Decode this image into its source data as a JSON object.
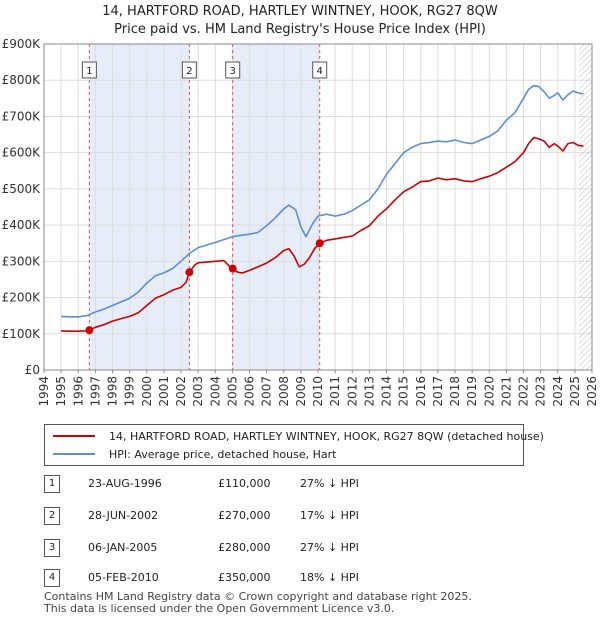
{
  "title_line1": "14, HARTFORD ROAD, HARTLEY WINTNEY, HOOK, RG27 8QW",
  "title_line2": "Price paid vs. HM Land Registry's House Price Index (HPI)",
  "chart_data": {
    "type": "line",
    "xlim": [
      1995.0,
      2025.6
    ],
    "ylim": [
      0,
      900000
    ],
    "y_ticks": [
      0,
      100000,
      200000,
      300000,
      400000,
      500000,
      600000,
      700000,
      800000,
      900000
    ],
    "y_tick_labels": [
      "£0",
      "£100K",
      "£200K",
      "£300K",
      "£400K",
      "£500K",
      "£600K",
      "£700K",
      "£800K",
      "£900K"
    ],
    "x_ticks": [
      1994,
      1995,
      1996,
      1997,
      1998,
      1999,
      2000,
      2001,
      2002,
      2003,
      2004,
      2005,
      2006,
      2007,
      2008,
      2009,
      2010,
      2011,
      2012,
      2013,
      2014,
      2015,
      2016,
      2017,
      2018,
      2019,
      2020,
      2021,
      2022,
      2023,
      2024,
      2025,
      2026
    ],
    "grid": true,
    "colors": {
      "property": "#cc0000",
      "hpi": "#5b8fd6",
      "shade": "#e6edf9",
      "sale_line": "#e05555",
      "hatch": "#bbbbbb"
    },
    "series": [
      {
        "name": "14, HARTFORD ROAD, HARTLEY WINTNEY, HOOK, RG27 8QW (detached house)",
        "key": "property",
        "x": [
          1995.0,
          1995.5,
          1996.0,
          1996.4,
          1996.65,
          1997.0,
          1997.5,
          1998.0,
          1998.5,
          1999.0,
          1999.5,
          2000.0,
          2000.5,
          2001.0,
          2001.5,
          2002.0,
          2002.3,
          2002.49,
          2002.8,
          2003.0,
          2003.5,
          2004.0,
          2004.5,
          2004.9,
          2005.02,
          2005.3,
          2005.6,
          2006.0,
          2006.5,
          2007.0,
          2007.5,
          2008.0,
          2008.3,
          2008.6,
          2008.9,
          2009.2,
          2009.5,
          2009.8,
          2010.1,
          2010.5,
          2011.0,
          2011.5,
          2012.0,
          2012.5,
          2013.0,
          2013.5,
          2014.0,
          2014.5,
          2015.0,
          2015.5,
          2016.0,
          2016.5,
          2017.0,
          2017.5,
          2018.0,
          2018.5,
          2019.0,
          2019.5,
          2020.0,
          2020.5,
          2021.0,
          2021.5,
          2022.0,
          2022.3,
          2022.6,
          2022.9,
          2023.2,
          2023.5,
          2023.8,
          2024.0,
          2024.3,
          2024.6,
          2024.9,
          2025.2,
          2025.5
        ],
        "values": [
          108000,
          107000,
          107000,
          108000,
          110000,
          118000,
          125000,
          135000,
          142000,
          148000,
          158000,
          178000,
          198000,
          208000,
          220000,
          228000,
          242000,
          270000,
          290000,
          296000,
          298000,
          300000,
          302000,
          283000,
          280000,
          270000,
          268000,
          275000,
          285000,
          295000,
          310000,
          330000,
          335000,
          315000,
          285000,
          292000,
          310000,
          335000,
          350000,
          358000,
          362000,
          366000,
          370000,
          385000,
          398000,
          425000,
          445000,
          470000,
          492000,
          505000,
          520000,
          522000,
          530000,
          525000,
          528000,
          522000,
          520000,
          528000,
          535000,
          545000,
          560000,
          575000,
          600000,
          625000,
          642000,
          638000,
          632000,
          615000,
          625000,
          618000,
          605000,
          625000,
          628000,
          620000,
          618000
        ]
      },
      {
        "name": "HPI: Average price, detached house, Hart",
        "key": "hpi",
        "x": [
          1995.0,
          1995.5,
          1996.0,
          1996.5,
          1997.0,
          1997.5,
          1998.0,
          1998.5,
          1999.0,
          1999.5,
          2000.0,
          2000.5,
          2001.0,
          2001.5,
          2002.0,
          2002.5,
          2003.0,
          2003.5,
          2004.0,
          2004.5,
          2005.0,
          2005.5,
          2006.0,
          2006.5,
          2007.0,
          2007.5,
          2008.0,
          2008.3,
          2008.7,
          2009.0,
          2009.3,
          2009.7,
          2010.0,
          2010.5,
          2011.0,
          2011.5,
          2012.0,
          2012.5,
          2013.0,
          2013.5,
          2014.0,
          2014.5,
          2015.0,
          2015.5,
          2016.0,
          2016.5,
          2017.0,
          2017.5,
          2018.0,
          2018.5,
          2019.0,
          2019.5,
          2020.0,
          2020.5,
          2021.0,
          2021.5,
          2022.0,
          2022.3,
          2022.6,
          2022.9,
          2023.2,
          2023.5,
          2023.8,
          2024.0,
          2024.3,
          2024.6,
          2024.9,
          2025.2,
          2025.5
        ],
        "values": [
          148000,
          147000,
          147000,
          150000,
          160000,
          168000,
          178000,
          188000,
          198000,
          215000,
          240000,
          260000,
          268000,
          280000,
          300000,
          322000,
          338000,
          345000,
          352000,
          360000,
          368000,
          372000,
          375000,
          380000,
          398000,
          420000,
          445000,
          455000,
          442000,
          395000,
          368000,
          405000,
          425000,
          430000,
          425000,
          430000,
          440000,
          455000,
          470000,
          500000,
          540000,
          570000,
          600000,
          615000,
          625000,
          628000,
          632000,
          630000,
          635000,
          628000,
          625000,
          635000,
          645000,
          660000,
          690000,
          710000,
          750000,
          775000,
          785000,
          782000,
          768000,
          750000,
          758000,
          765000,
          745000,
          760000,
          770000,
          765000,
          762000
        ]
      }
    ],
    "sales": [
      {
        "label": "1",
        "x": 1996.65,
        "value": 110000
      },
      {
        "label": "2",
        "x": 2002.49,
        "value": 270000
      },
      {
        "label": "3",
        "x": 2005.02,
        "value": 280000
      },
      {
        "label": "4",
        "x": 2010.1,
        "value": 350000
      }
    ]
  },
  "legend": {
    "property": "14, HARTFORD ROAD, HARTLEY WINTNEY, HOOK, RG27 8QW (detached house)",
    "hpi": "HPI: Average price, detached house, Hart"
  },
  "transactions": [
    {
      "num": "1",
      "date": "23-AUG-1996",
      "price": "£110,000",
      "hpi": "27% ↓ HPI"
    },
    {
      "num": "2",
      "date": "28-JUN-2002",
      "price": "£270,000",
      "hpi": "17% ↓ HPI"
    },
    {
      "num": "3",
      "date": "06-JAN-2005",
      "price": "£280,000",
      "hpi": "27% ↓ HPI"
    },
    {
      "num": "4",
      "date": "05-FEB-2010",
      "price": "£350,000",
      "hpi": "18% ↓ HPI"
    }
  ],
  "footer": {
    "line1": "Contains HM Land Registry data © Crown copyright and database right 2025.",
    "line2": "This data is licensed under the Open Government Licence v3.0."
  }
}
